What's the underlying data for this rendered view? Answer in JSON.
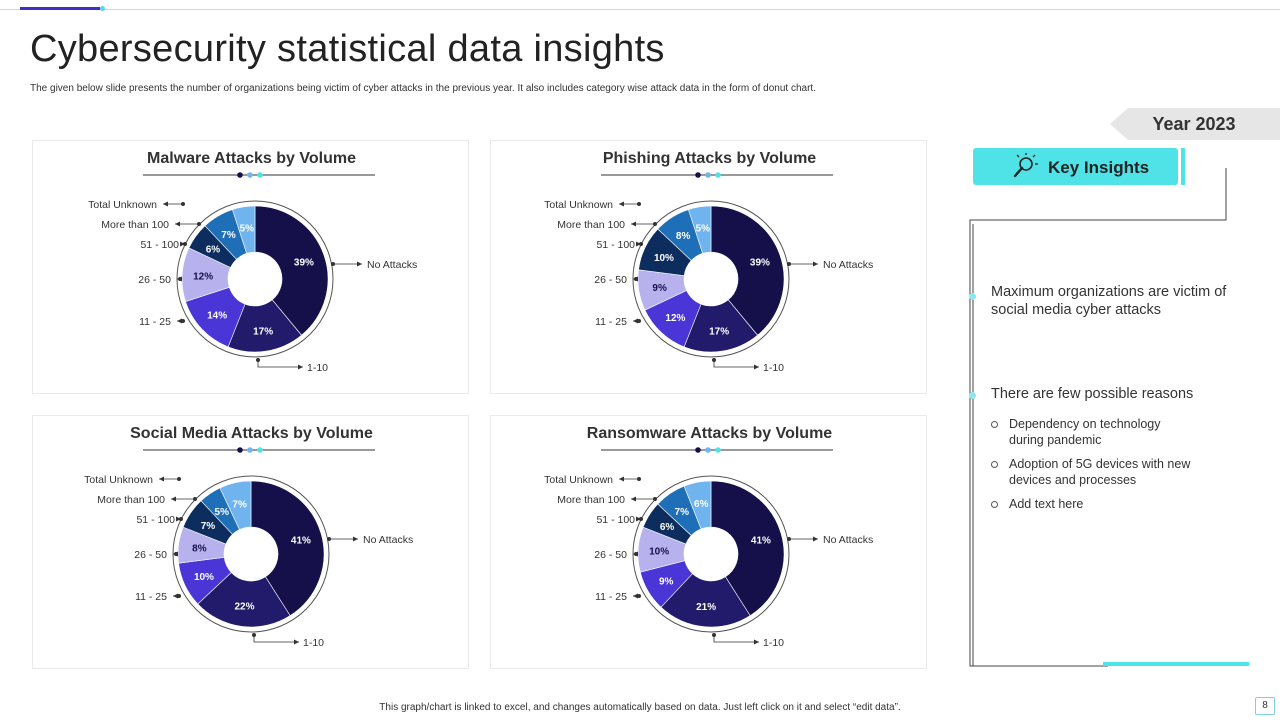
{
  "slide": {
    "title": "Cybersecurity statistical data insights",
    "subtitle": "The given below slide presents the number of organizations being victim of cyber attacks in the previous year. It also includes category wise attack data in the form of donut chart.",
    "footer": "This graph/chart is linked to excel, and changes automatically based on data. Just left click on it and select “edit data”.",
    "page_number": "8"
  },
  "colors": {
    "accent": "#3b2fc9",
    "cyan": "#4fe3e8",
    "slices": [
      "#15104a",
      "#221a6a",
      "#4a35d6",
      "#b7b1ee",
      "#0c2d5e",
      "#1f6fb8",
      "#6fb4ee"
    ]
  },
  "side": {
    "year": "Year 2023",
    "insights_label": "Key Insights",
    "insight1": "Maximum organizations are victim of social media cyber attacks",
    "insight2": "There are few possible reasons",
    "bullets": [
      "Dependency on technology during pandemic",
      "Adoption of 5G devices with new devices and processes",
      "Add text here"
    ]
  },
  "chart_data": [
    {
      "type": "pie",
      "title": "Malware Attacks by Volume",
      "categories": [
        "No Attacks",
        "1-10",
        "11 - 25",
        "26 - 50",
        "51 - 100",
        "More than 100",
        "Total Unknown"
      ],
      "values": [
        39,
        17,
        14,
        12,
        6,
        7,
        5
      ],
      "labels": [
        "39%",
        "17%",
        "14%",
        "12%",
        "6%",
        "7%",
        "5%"
      ]
    },
    {
      "type": "pie",
      "title": "Phishing Attacks by Volume",
      "categories": [
        "No Attacks",
        "1-10",
        "11 - 25",
        "26 - 50",
        "51 - 100",
        "More than 100",
        "Total Unknown"
      ],
      "values": [
        39,
        17,
        12,
        9,
        10,
        8,
        5
      ],
      "labels": [
        "39%",
        "17%",
        "12%",
        "9%",
        "10%",
        "8%",
        "5%"
      ]
    },
    {
      "type": "pie",
      "title": "Social Media Attacks by Volume",
      "categories": [
        "No Attacks",
        "1-10",
        "11 - 25",
        "26 - 50",
        "51 - 100",
        "More than 100",
        "Total Unknown"
      ],
      "values": [
        41,
        22,
        10,
        8,
        7,
        5,
        7
      ],
      "labels": [
        "41%",
        "22%",
        "10%",
        "8%",
        "7%",
        "5%",
        "7%"
      ]
    },
    {
      "type": "pie",
      "title": "Ransomware Attacks by Volume",
      "categories": [
        "No Attacks",
        "1-10",
        "11 - 25",
        "26 - 50",
        "51 - 100",
        "More than 100",
        "Total Unknown"
      ],
      "values": [
        41,
        21,
        9,
        10,
        6,
        7,
        6
      ],
      "labels": [
        "41%",
        "21%",
        "9%",
        "10%",
        "6%",
        "7%",
        "6%"
      ]
    }
  ]
}
